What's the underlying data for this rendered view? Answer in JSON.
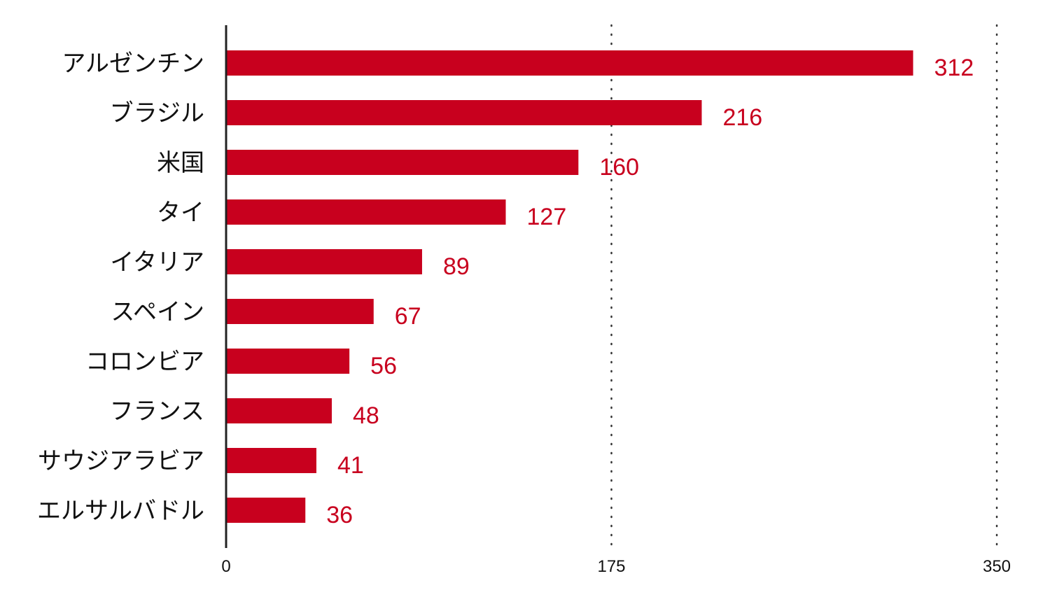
{
  "chart_data": {
    "type": "bar",
    "orientation": "horizontal",
    "categories": [
      "アルゼンチン",
      "ブラジル",
      "米国",
      "タイ",
      "イタリア",
      "スペイン",
      "コロンビア",
      "フランス",
      "サウジアラビア",
      "エルサルバドル"
    ],
    "values": [
      312,
      216,
      160,
      127,
      89,
      67,
      56,
      48,
      41,
      36
    ],
    "data_labels": [
      "312",
      "216",
      "160",
      "127",
      "89",
      "67",
      "56",
      "48",
      "41",
      "36"
    ],
    "xlim": [
      0,
      350
    ],
    "x_ticks": [
      0,
      175,
      350
    ],
    "x_tick_labels": [
      "0",
      "175",
      "350"
    ],
    "grid": "vertical dotted",
    "legend": "none",
    "colors": {
      "bar": "#c8001e",
      "label": "#c8001e",
      "axis": "#222222",
      "grid": "#333333"
    }
  }
}
